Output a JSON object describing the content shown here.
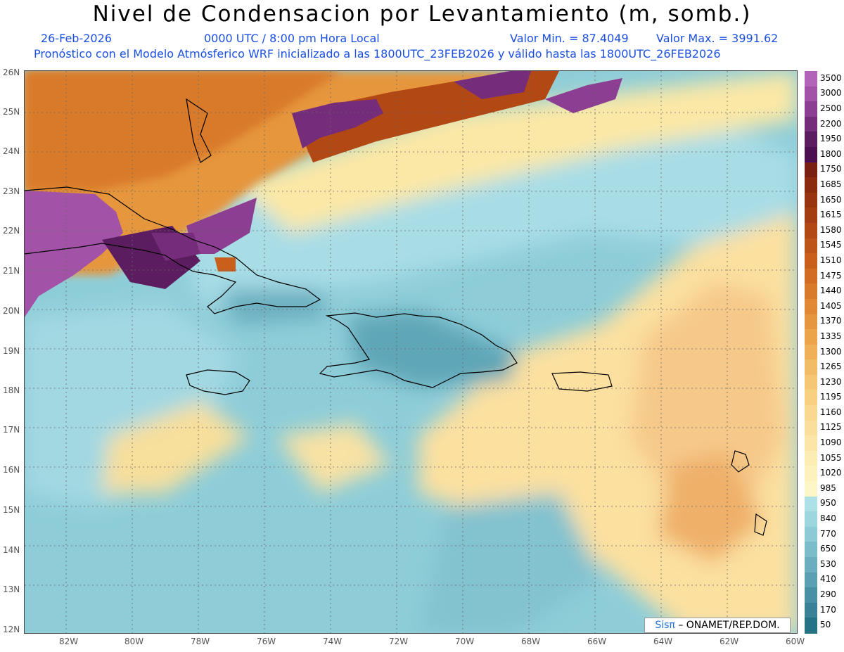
{
  "title": "Nivel de Condensacion por Levantamiento (m, somb.)",
  "date": "26-Feb-2026",
  "time": "0000 UTC / 8:00 pm Hora Local",
  "vmin": "Valor Min. = 87.4049",
  "vmax": "Valor Max. = 3991.62",
  "subtitle": "Pronóstico con el Modelo Atmósferico WRF inicializado a las 1800UTC_23FEB2026 y válido hasta las  1800UTC_26FEB2026",
  "credit": {
    "sis": "Sisπ",
    "rest": "– ONAMET/REP.DOM."
  },
  "lat_labels": [
    "26N",
    "25N",
    "24N",
    "23N",
    "22N",
    "21N",
    "20N",
    "19N",
    "18N",
    "17N",
    "16N",
    "15N",
    "14N",
    "13N",
    "12N"
  ],
  "lon_labels": [
    "82W",
    "80W",
    "78W",
    "76W",
    "74W",
    "72W",
    "70W",
    "68W",
    "66W",
    "64W",
    "62W",
    "60W"
  ],
  "colorbar": {
    "labels": [
      "3500",
      "3000",
      "2500",
      "2200",
      "1950",
      "1800",
      "1750",
      "1685",
      "1650",
      "1615",
      "1580",
      "1545",
      "1510",
      "1475",
      "1440",
      "1405",
      "1370",
      "1335",
      "1300",
      "1265",
      "1230",
      "1195",
      "1160",
      "1125",
      "1090",
      "1055",
      "1020",
      "985",
      "950",
      "840",
      "770",
      "650",
      "530",
      "410",
      "290",
      "170",
      "50"
    ],
    "colors": [
      "#b265b8",
      "#a253a8",
      "#8c3f92",
      "#742c7b",
      "#5c1d60",
      "#4a1050",
      "#7a2010",
      "#8a2a0e",
      "#983410",
      "#a53d12",
      "#b24814",
      "#bd5418",
      "#c8601c",
      "#d26c22",
      "#d97a2a",
      "#e08834",
      "#e6963e",
      "#eba44a",
      "#efb058",
      "#f2bc66",
      "#f5c674",
      "#f7d082",
      "#f9d890",
      "#fadf9c",
      "#fbe6a8",
      "#fcedb4",
      "#fdf2be",
      "#fdf6c6",
      "#aee0e8",
      "#9ed6e0",
      "#8ccad6",
      "#7bbccb",
      "#6aaebf",
      "#5a9fb2",
      "#4990a4",
      "#388196",
      "#277386"
    ]
  },
  "map": {
    "lon_range": [
      -83.2,
      -60
    ],
    "lat_range": [
      11.9,
      26.2
    ]
  }
}
